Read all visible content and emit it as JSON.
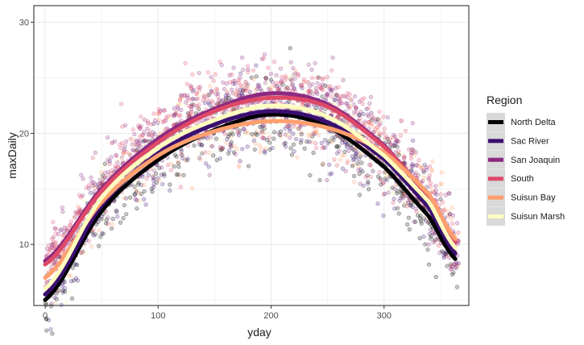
{
  "chart_data": {
    "type": "scatter",
    "xlabel": "yday",
    "ylabel": "maxDaily",
    "xlim": [
      -10,
      375
    ],
    "ylim": [
      4.5,
      31.5
    ],
    "x_ticks": [
      0,
      100,
      200,
      300
    ],
    "y_ticks": [
      10,
      20,
      30
    ],
    "grid": true,
    "legend_placement": "right",
    "legend_title": "Region",
    "series": [
      {
        "name": "North Delta",
        "color": "#000004",
        "smooth": [
          [
            0,
            5.0
          ],
          [
            50,
            13.0
          ],
          [
            100,
            17.6
          ],
          [
            150,
            20.3
          ],
          [
            200,
            21.7
          ],
          [
            250,
            20.6
          ],
          [
            300,
            17.0
          ],
          [
            340,
            12.5
          ],
          [
            365,
            8.5
          ]
        ]
      },
      {
        "name": "Sac River",
        "color": "#3b0f70",
        "smooth": [
          [
            0,
            5.5
          ],
          [
            50,
            13.5
          ],
          [
            100,
            18.2
          ],
          [
            150,
            20.8
          ],
          [
            200,
            22.0
          ],
          [
            250,
            21.0
          ],
          [
            300,
            17.7
          ],
          [
            340,
            13.3
          ],
          [
            365,
            9.0
          ]
        ]
      },
      {
        "name": "San Joaquin",
        "color": "#8c2981",
        "smooth": [
          [
            0,
            8.5
          ],
          [
            50,
            15.0
          ],
          [
            100,
            19.5
          ],
          [
            150,
            22.2
          ],
          [
            200,
            23.6
          ],
          [
            250,
            22.6
          ],
          [
            300,
            18.9
          ],
          [
            340,
            14.2
          ],
          [
            365,
            9.5
          ]
        ]
      },
      {
        "name": "South",
        "color": "#de4968",
        "smooth": [
          [
            0,
            8.2
          ],
          [
            50,
            14.8
          ],
          [
            100,
            19.2
          ],
          [
            150,
            22.0
          ],
          [
            200,
            23.2
          ],
          [
            250,
            22.4
          ],
          [
            300,
            18.8
          ],
          [
            340,
            14.3
          ],
          [
            365,
            10.0
          ]
        ]
      },
      {
        "name": "Suisun Bay",
        "color": "#fe9f6d",
        "smooth": [
          [
            0,
            7.0
          ],
          [
            50,
            13.8
          ],
          [
            100,
            18.0
          ],
          [
            150,
            20.2
          ],
          [
            200,
            21.1
          ],
          [
            250,
            20.5
          ],
          [
            300,
            18.3
          ],
          [
            340,
            14.5
          ],
          [
            365,
            10.3
          ]
        ]
      },
      {
        "name": "Suisun Marsh",
        "color": "#fcfdbf",
        "smooth": [
          [
            0,
            6.0
          ],
          [
            50,
            14.2
          ],
          [
            100,
            18.7
          ],
          [
            150,
            21.2
          ],
          [
            200,
            22.5
          ],
          [
            250,
            21.5
          ],
          [
            300,
            18.0
          ],
          [
            340,
            13.8
          ],
          [
            365,
            9.5
          ]
        ]
      }
    ]
  }
}
